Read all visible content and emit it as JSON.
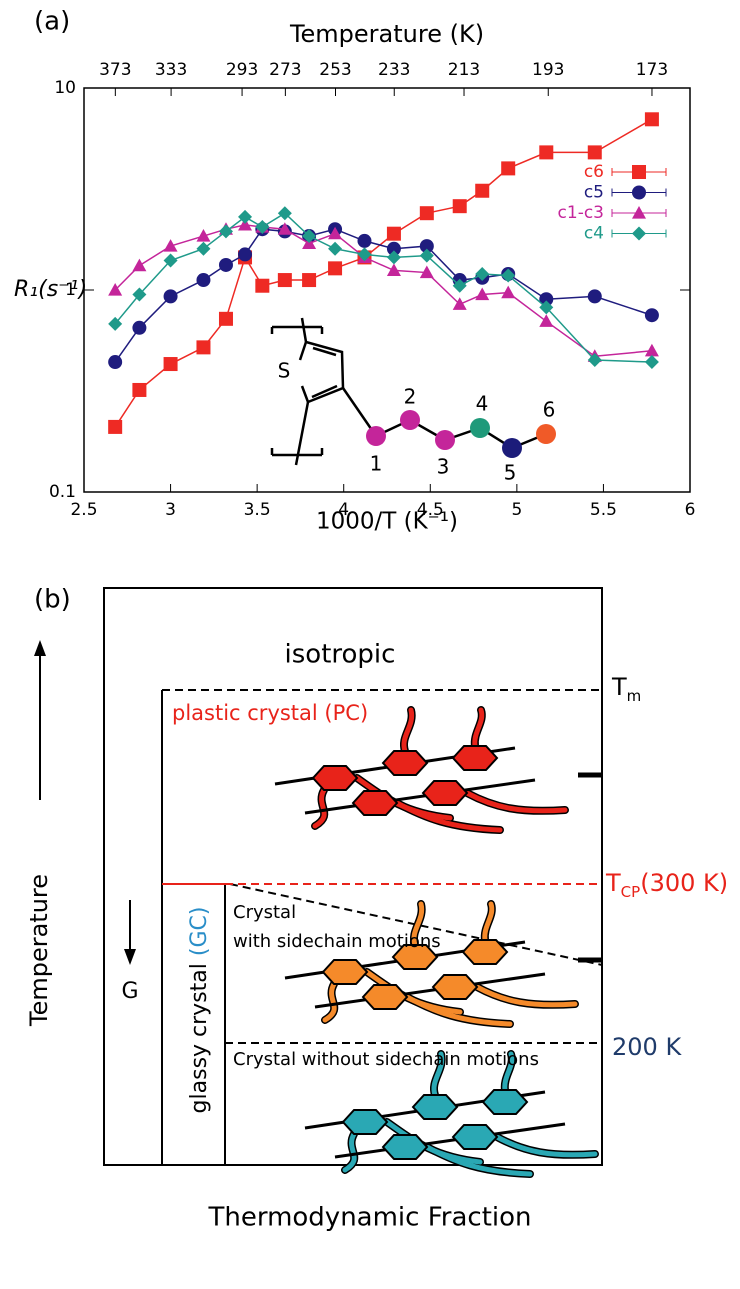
{
  "chart_data": {
    "type": "line",
    "panel_label": "(a)",
    "x2label": "Temperature (K)",
    "xlabel": "1000/T (K⁻¹)",
    "ylabel": "R₁(s⁻¹)",
    "xlim": [
      2.5,
      6
    ],
    "xticks": [
      2.5,
      3,
      3.5,
      4,
      4.5,
      5,
      5.5,
      6
    ],
    "ylim": [
      0.1,
      10
    ],
    "yticks": [
      0.1,
      1,
      10
    ],
    "yscale": "log",
    "x2ticks": [
      373,
      333,
      293,
      273,
      253,
      233,
      213,
      193,
      173
    ],
    "legend": "upper right",
    "x": [
      2.68,
      2.82,
      3.0,
      3.19,
      3.32,
      3.43,
      3.53,
      3.66,
      3.8,
      3.95,
      4.12,
      4.29,
      4.48,
      4.67,
      4.8,
      4.95,
      5.17,
      5.45,
      5.78
    ],
    "series": [
      {
        "name": "c6",
        "color": "#ee2a24",
        "marker": "square",
        "values": [
          0.21,
          0.32,
          0.43,
          0.52,
          0.72,
          1.45,
          1.05,
          1.12,
          1.12,
          1.28,
          1.45,
          1.9,
          2.4,
          2.6,
          3.1,
          4.0,
          4.8,
          4.8,
          7.0
        ]
      },
      {
        "name": "c5",
        "color": "#1f1c7e",
        "marker": "circle",
        "values": [
          0.44,
          0.65,
          0.93,
          1.12,
          1.33,
          1.5,
          2.0,
          1.95,
          1.85,
          2.0,
          1.75,
          1.6,
          1.65,
          1.12,
          1.15,
          1.2,
          0.9,
          0.93,
          0.75
        ]
      },
      {
        "name": "c1-c3",
        "color": "#c4259a",
        "marker": "triangle",
        "values": [
          1.0,
          1.32,
          1.65,
          1.85,
          2.0,
          2.1,
          2.05,
          2.0,
          1.7,
          1.9,
          1.45,
          1.25,
          1.22,
          0.85,
          0.95,
          0.97,
          0.7,
          0.47,
          0.5
        ]
      },
      {
        "name": "c4",
        "color": "#1f9a8a",
        "marker": "diamond",
        "values": [
          0.68,
          0.95,
          1.4,
          1.6,
          1.95,
          2.3,
          2.05,
          2.4,
          1.85,
          1.6,
          1.5,
          1.45,
          1.48,
          1.05,
          1.2,
          1.18,
          0.82,
          0.45,
          0.44
        ]
      }
    ]
  },
  "inset": {
    "atom": "S",
    "labels": [
      "1",
      "2",
      "3",
      "4",
      "5",
      "6"
    ]
  },
  "diagram": {
    "panel_label": "(b)",
    "isotropic": "isotropic",
    "plastic": "plastic crystal (PC)",
    "crystal_motion": [
      "Crystal",
      "with sidechain motions"
    ],
    "crystal_static": "Crystal without sidechain motions",
    "glassy": [
      "glassy crystal ",
      "(GC)"
    ],
    "g": "G",
    "tm": [
      "T",
      "m"
    ],
    "tcp": [
      "T",
      "CP",
      "(300 K)"
    ],
    "t200": "200 K",
    "yaxis": "Temperature",
    "xaxis": "Thermodynamic Fraction"
  }
}
